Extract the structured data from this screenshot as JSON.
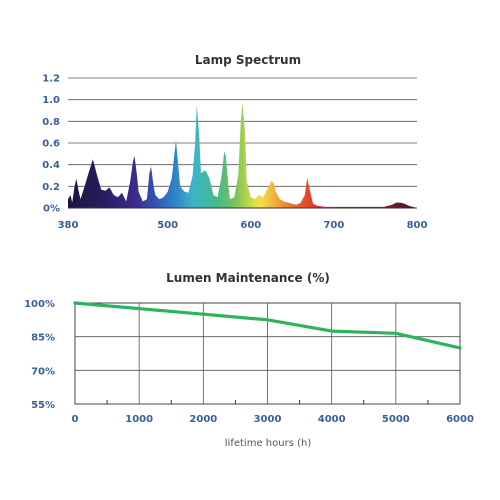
{
  "chart_data": [
    {
      "type": "area",
      "title": "Lamp Spectrum",
      "xlabel": "",
      "ylabel": "",
      "xlim": [
        380,
        800
      ],
      "ylim": [
        0,
        1.2
      ],
      "x_ticks": [
        380,
        500,
        600,
        700,
        800
      ],
      "y_tick_labels": [
        "0%",
        "0.2",
        "0.4",
        "0.6",
        "0.8",
        "1.0",
        "1.2"
      ],
      "grid": "horizontal",
      "series": [
        {
          "x": [
            380,
            383,
            385,
            388,
            390,
            393,
            395,
            400,
            405,
            410,
            415,
            420,
            425,
            430,
            435,
            440,
            445,
            450,
            455,
            458,
            460,
            463,
            465,
            470,
            475,
            478,
            480,
            483,
            485,
            490,
            495,
            500,
            505,
            508,
            510,
            512,
            515,
            520,
            525,
            530,
            533,
            535,
            538,
            540,
            545,
            550,
            555,
            560,
            565,
            568,
            570,
            573,
            575,
            580,
            585,
            588,
            590,
            593,
            595,
            600,
            605,
            610,
            615,
            620,
            625,
            628,
            630,
            635,
            640,
            645,
            650,
            655,
            660,
            665,
            668,
            670,
            673,
            675,
            680,
            690,
            700,
            710,
            720,
            730,
            740,
            750,
            760,
            770,
            775,
            780,
            785,
            790,
            795,
            800
          ],
          "y": [
            0.08,
            0.12,
            0.05,
            0.2,
            0.27,
            0.15,
            0.08,
            0.2,
            0.33,
            0.45,
            0.3,
            0.17,
            0.16,
            0.19,
            0.12,
            0.1,
            0.14,
            0.06,
            0.25,
            0.42,
            0.48,
            0.3,
            0.15,
            0.06,
            0.08,
            0.32,
            0.38,
            0.2,
            0.12,
            0.08,
            0.1,
            0.15,
            0.28,
            0.5,
            0.62,
            0.45,
            0.2,
            0.15,
            0.14,
            0.3,
            0.6,
            0.95,
            0.65,
            0.32,
            0.35,
            0.28,
            0.12,
            0.1,
            0.3,
            0.52,
            0.48,
            0.2,
            0.08,
            0.1,
            0.3,
            0.8,
            0.97,
            0.7,
            0.25,
            0.1,
            0.08,
            0.12,
            0.1,
            0.18,
            0.25,
            0.22,
            0.15,
            0.08,
            0.06,
            0.05,
            0.04,
            0.03,
            0.05,
            0.12,
            0.28,
            0.2,
            0.1,
            0.04,
            0.02,
            0.01,
            0.01,
            0.01,
            0.01,
            0.01,
            0.01,
            0.01,
            0.01,
            0.03,
            0.05,
            0.05,
            0.04,
            0.02,
            0.01,
            0.0
          ]
        }
      ]
    },
    {
      "type": "line",
      "title": "Lumen Maintenance (%)",
      "xlabel": "lifetime hours (h)",
      "ylabel": "",
      "xlim": [
        0,
        6000
      ],
      "ylim": [
        55,
        100
      ],
      "x_ticks": [
        0,
        1000,
        2000,
        3000,
        4000,
        5000,
        6000
      ],
      "y_ticks": [
        100,
        85,
        70,
        55
      ],
      "y_tick_labels": [
        "100%",
        "85%",
        "70%",
        "55%"
      ],
      "grid": "both",
      "series": [
        {
          "x": [
            0,
            1000,
            2000,
            3000,
            4000,
            5000,
            6000
          ],
          "y": [
            100,
            97.5,
            95,
            92.5,
            87.5,
            86.5,
            80
          ],
          "color": "#2db35d"
        }
      ]
    }
  ],
  "colors": {
    "tick_text": "#3a5f96",
    "line": "#2db35d"
  }
}
